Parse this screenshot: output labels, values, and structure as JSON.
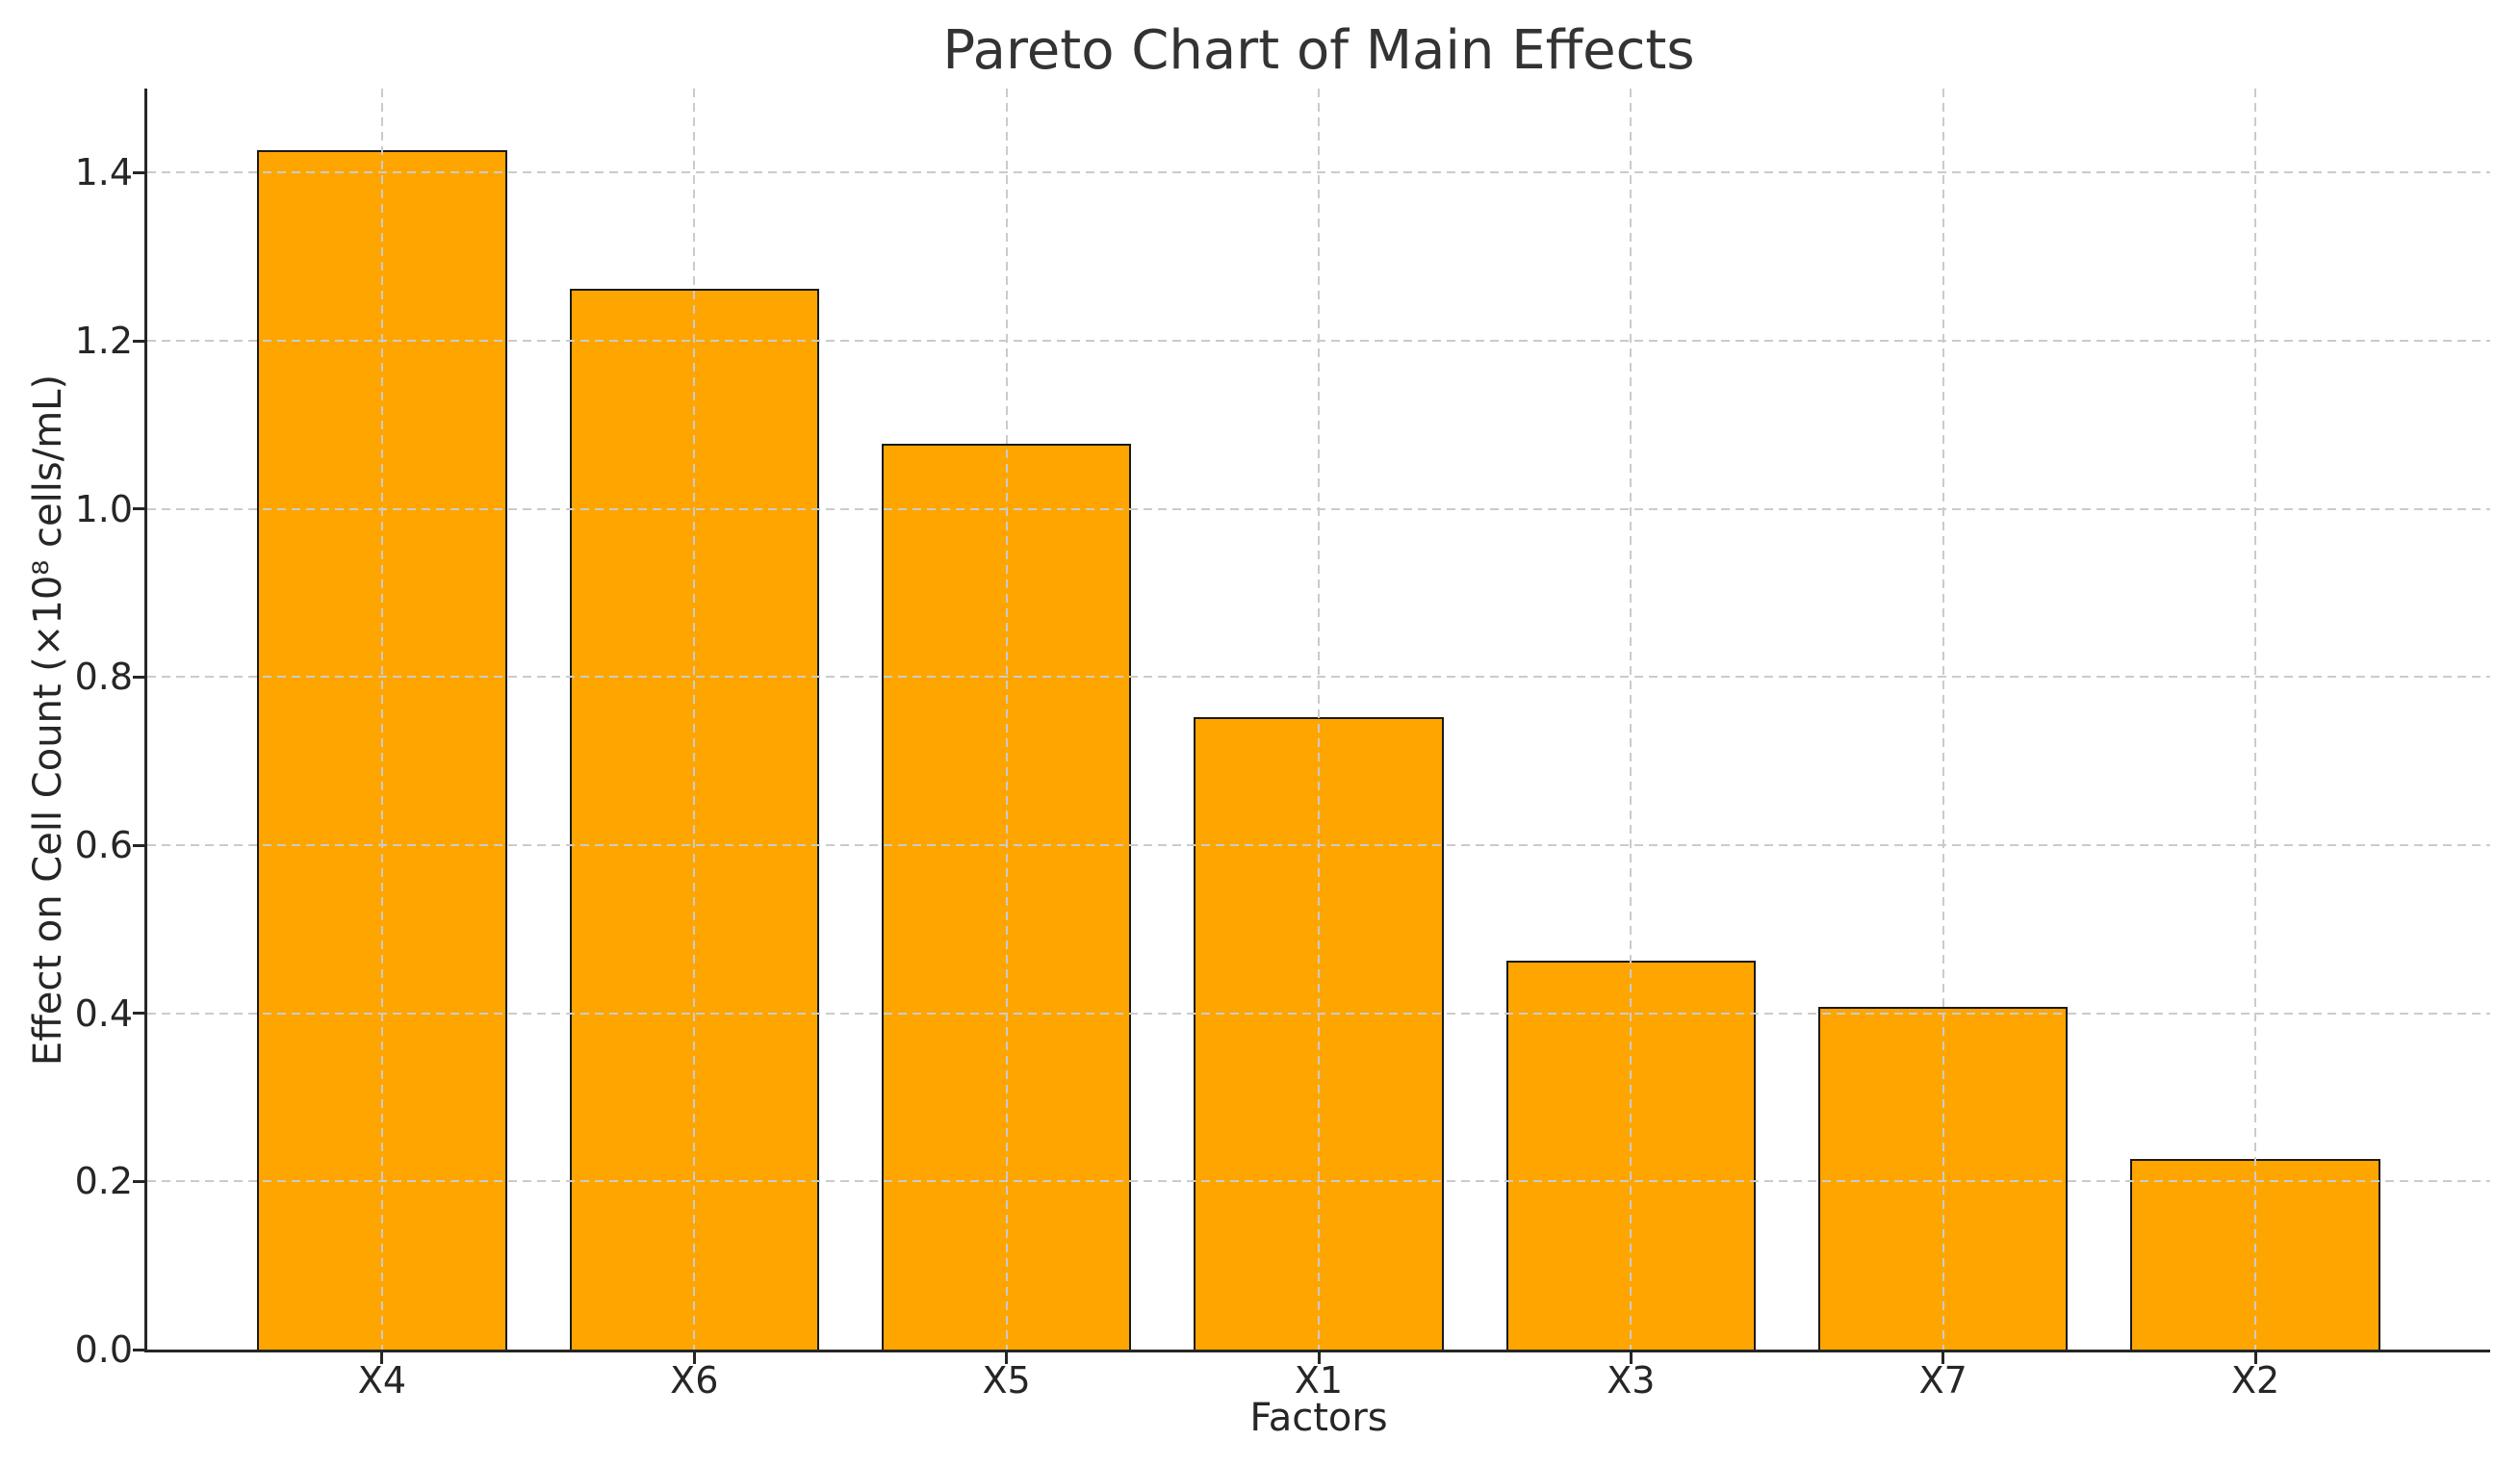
{
  "chart_data": {
    "type": "bar",
    "title": "Pareto Chart of Main Effects",
    "xlabel": "Factors",
    "ylabel": "Effect on Cell Count (×10⁸ cells/mL)",
    "categories": [
      "X4",
      "X6",
      "X5",
      "X1",
      "X3",
      "X7",
      "X2"
    ],
    "values": [
      1.425,
      1.26,
      1.075,
      0.75,
      0.46,
      0.405,
      0.225
    ],
    "yticks": [
      0.0,
      0.2,
      0.4,
      0.6,
      0.8,
      1.0,
      1.2,
      1.4
    ],
    "ytick_labels": [
      "0.0",
      "0.2",
      "0.4",
      "0.6",
      "0.8",
      "1.0",
      "1.2",
      "1.4"
    ],
    "ylim": [
      0,
      1.5
    ],
    "grid": true,
    "grid_style": "dashed",
    "grid_over_bars": true,
    "legend_position": "none",
    "bar_color": "#FFA500",
    "bar_edge_color": "#1a1a1a",
    "grid_color": "#cbcbcb",
    "spine_color": "#262626",
    "title_color": "#333333",
    "text_color": "#262626",
    "background_color": "#ffffff"
  }
}
